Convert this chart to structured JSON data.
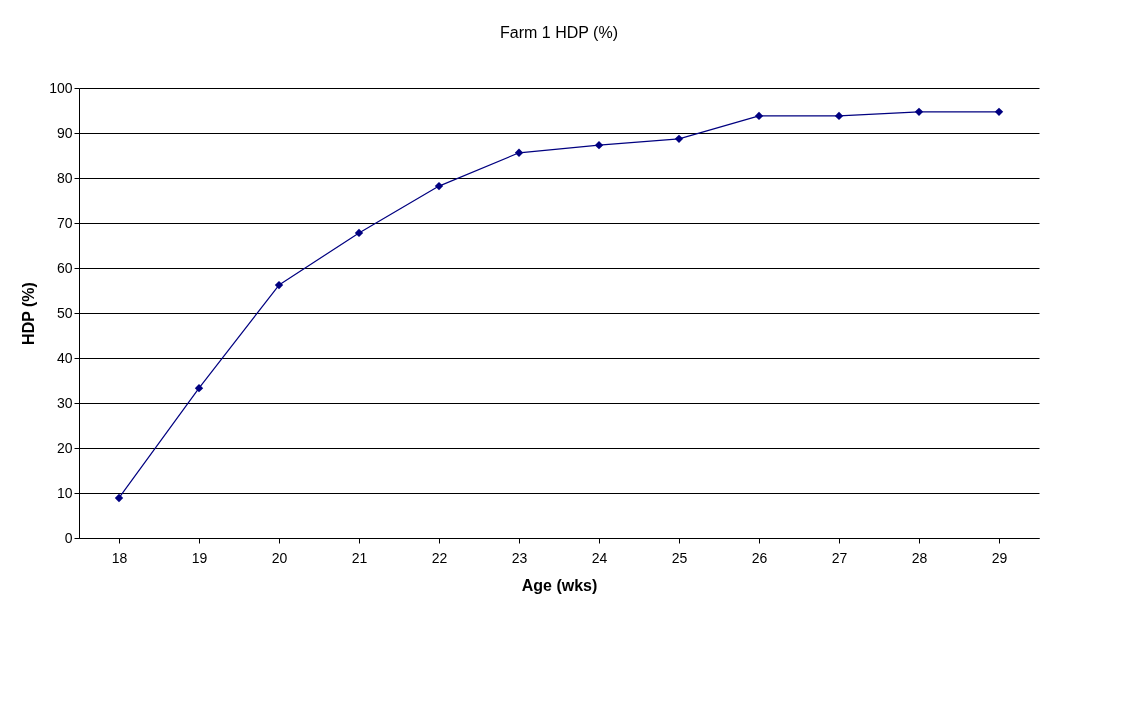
{
  "chart_data": {
    "type": "line",
    "title": "Farm 1 HDP (%)",
    "xlabel": "Age (wks)",
    "ylabel": "HDP (%)",
    "categories": [
      "18",
      "19",
      "20",
      "21",
      "22",
      "23",
      "24",
      "25",
      "26",
      "27",
      "28",
      "29"
    ],
    "values": [
      8.9,
      33.3,
      56.2,
      67.8,
      78.2,
      85.6,
      87.3,
      88.7,
      93.8,
      93.8,
      94.7,
      94.7
    ],
    "color": "#000080",
    "marker": "diamond",
    "line_style": "solid",
    "ylim": [
      0,
      100
    ],
    "yticks": [
      0,
      10,
      20,
      30,
      40,
      50,
      60,
      70,
      80,
      90,
      100
    ],
    "grid": "y"
  }
}
